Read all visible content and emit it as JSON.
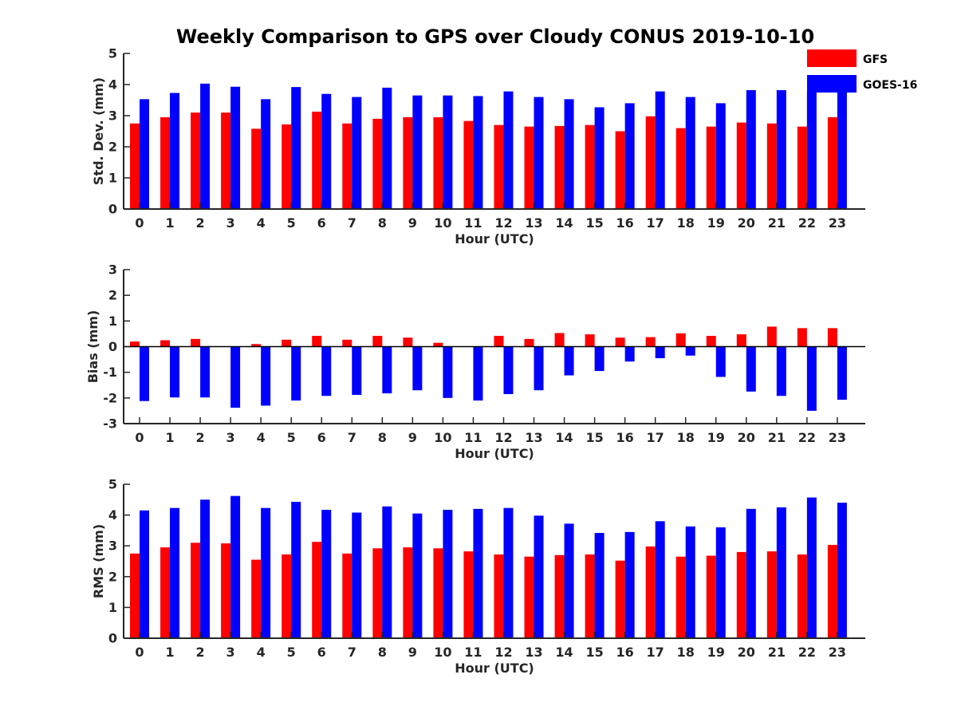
{
  "title": "Weekly Comparison to GPS over Cloudy CONUS 2019-10-10",
  "legend": {
    "placement": "top-right",
    "entries": [
      {
        "name": "GFS",
        "color": "#ff0000"
      },
      {
        "name": "GOES-16",
        "color": "#0000ff"
      }
    ]
  },
  "chart_data": [
    {
      "type": "bar",
      "xlabel": "Hour (UTC)",
      "ylabel": "Std. Dev. (mm)",
      "ylim": [
        0,
        5
      ],
      "yticks": [
        "0",
        "1",
        "2",
        "3",
        "4",
        "5"
      ],
      "categories": [
        "0",
        "1",
        "2",
        "3",
        "4",
        "5",
        "6",
        "7",
        "8",
        "9",
        "10",
        "11",
        "12",
        "13",
        "14",
        "15",
        "16",
        "17",
        "18",
        "19",
        "20",
        "21",
        "22",
        "23"
      ],
      "series": [
        {
          "name": "GFS",
          "color": "#ff0000",
          "values": [
            2.75,
            2.95,
            3.1,
            3.1,
            2.58,
            2.72,
            3.13,
            2.75,
            2.9,
            2.95,
            2.95,
            2.83,
            2.7,
            2.65,
            2.67,
            2.7,
            2.5,
            2.98,
            2.6,
            2.65,
            2.78,
            2.75,
            2.65,
            2.95
          ]
        },
        {
          "name": "GOES-16",
          "color": "#0000ff",
          "values": [
            3.53,
            3.73,
            4.03,
            3.93,
            3.53,
            3.92,
            3.7,
            3.6,
            3.9,
            3.65,
            3.65,
            3.63,
            3.78,
            3.6,
            3.53,
            3.27,
            3.4,
            3.78,
            3.6,
            3.4,
            3.82,
            3.82,
            3.8,
            3.82
          ]
        }
      ]
    },
    {
      "type": "bar",
      "xlabel": "Hour (UTC)",
      "ylabel": "Bias (mm)",
      "ylim": [
        -3,
        3
      ],
      "yticks": [
        "-3",
        "-2",
        "-1",
        "0",
        "1",
        "2",
        "3"
      ],
      "categories": [
        "0",
        "1",
        "2",
        "3",
        "4",
        "5",
        "6",
        "7",
        "8",
        "9",
        "10",
        "11",
        "12",
        "13",
        "14",
        "15",
        "16",
        "17",
        "18",
        "19",
        "20",
        "21",
        "22",
        "23"
      ],
      "series": [
        {
          "name": "GFS",
          "color": "#ff0000",
          "values": [
            0.2,
            0.25,
            0.3,
            0.0,
            0.1,
            0.27,
            0.42,
            0.27,
            0.42,
            0.35,
            0.15,
            0.0,
            0.42,
            0.3,
            0.53,
            0.48,
            0.35,
            0.37,
            0.52,
            0.42,
            0.48,
            0.78,
            0.72,
            0.72
          ]
        },
        {
          "name": "GOES-16",
          "color": "#0000ff",
          "values": [
            -2.12,
            -1.98,
            -1.98,
            -2.38,
            -2.3,
            -2.1,
            -1.92,
            -1.88,
            -1.82,
            -1.7,
            -2.0,
            -2.1,
            -1.85,
            -1.7,
            -1.12,
            -0.95,
            -0.58,
            -0.45,
            -0.35,
            -1.18,
            -1.75,
            -1.92,
            -2.5,
            -2.07
          ]
        }
      ]
    },
    {
      "type": "bar",
      "xlabel": "Hour (UTC)",
      "ylabel": "RMS (mm)",
      "ylim": [
        0,
        5
      ],
      "yticks": [
        "0",
        "1",
        "2",
        "3",
        "4",
        "5"
      ],
      "categories": [
        "0",
        "1",
        "2",
        "3",
        "4",
        "5",
        "6",
        "7",
        "8",
        "9",
        "10",
        "11",
        "12",
        "13",
        "14",
        "15",
        "16",
        "17",
        "18",
        "19",
        "20",
        "21",
        "22",
        "23"
      ],
      "series": [
        {
          "name": "GFS",
          "color": "#ff0000",
          "values": [
            2.75,
            2.95,
            3.1,
            3.08,
            2.55,
            2.72,
            3.13,
            2.75,
            2.92,
            2.95,
            2.92,
            2.82,
            2.72,
            2.65,
            2.7,
            2.72,
            2.52,
            2.98,
            2.65,
            2.68,
            2.8,
            2.82,
            2.72,
            3.03
          ]
        },
        {
          "name": "GOES-16",
          "color": "#0000ff",
          "values": [
            4.15,
            4.23,
            4.5,
            4.62,
            4.23,
            4.43,
            4.17,
            4.08,
            4.28,
            4.05,
            4.17,
            4.2,
            4.23,
            3.98,
            3.72,
            3.42,
            3.45,
            3.8,
            3.63,
            3.6,
            4.2,
            4.25,
            4.57,
            4.4
          ]
        }
      ]
    }
  ]
}
